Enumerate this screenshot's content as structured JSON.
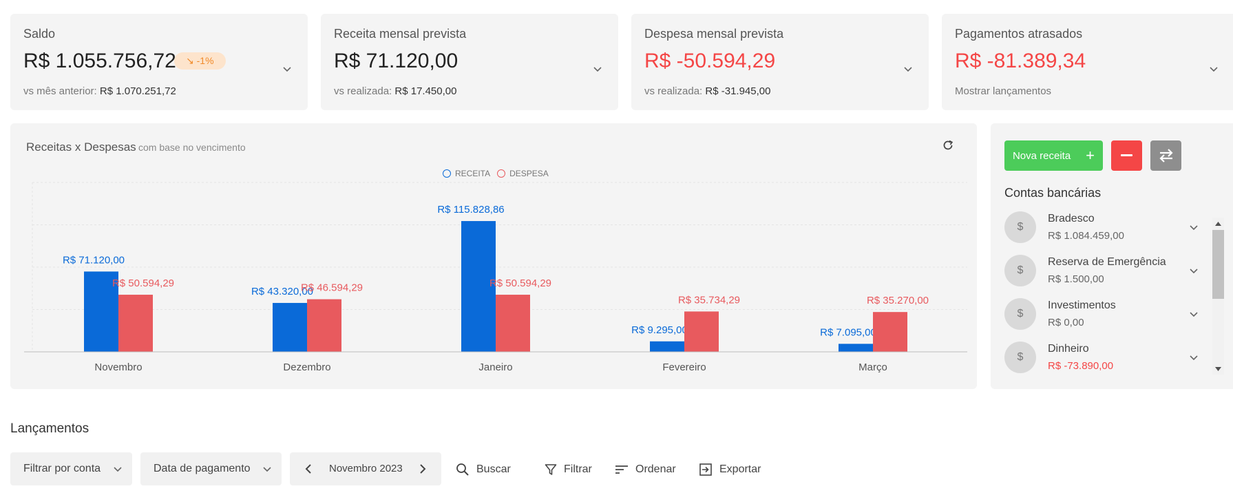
{
  "cards": [
    {
      "title": "Saldo",
      "value": "R$ 1.055.756,72",
      "badge": "↘ -1%",
      "sub_label": "vs mês anterior:",
      "sub_value": "R$ 1.070.251,72"
    },
    {
      "title": "Receita mensal prevista",
      "value": "R$ 71.120,00",
      "sub_label": "vs realizada:",
      "sub_value": "R$ 17.450,00"
    },
    {
      "title": "Despesa mensal prevista",
      "value": "R$ -50.594,29",
      "sub_label": "vs realizada:",
      "sub_value": "R$ -31.945,00"
    },
    {
      "title": "Pagamentos atrasados",
      "value": "R$ -81.389,34",
      "sub_label": "Mostrar lançamentos"
    }
  ],
  "chart_panel": {
    "title": "Receitas x Despesas",
    "subtitle": "com base no vencimento"
  },
  "chart_data": {
    "type": "bar",
    "title": "Receitas x Despesas",
    "categories": [
      "Novembro",
      "Dezembro",
      "Janeiro",
      "Fevereiro",
      "Março"
    ],
    "series": [
      {
        "name": "RECEITA",
        "color": "#0a6ad8",
        "values": [
          71120.0,
          43320.0,
          115828.86,
          9295.0,
          7095.0
        ],
        "labels": [
          "R$ 71.120,00",
          "R$ 43.320,00",
          "R$ 115.828,86",
          "R$ 9.295,00",
          "R$ 7.095,00"
        ]
      },
      {
        "name": "DESPESA",
        "color": "#e85a5e",
        "values": [
          50594.29,
          46594.29,
          50594.29,
          35734.29,
          35270.0
        ],
        "labels": [
          "R$ 50.594,29",
          "R$ 46.594,29",
          "R$ 50.594,29",
          "R$ 35.734,29",
          "R$ 35.270,00"
        ]
      }
    ],
    "ylim": [
      0,
      150000
    ],
    "legend": "top-center",
    "grid": true
  },
  "actions": {
    "new_income": "Nova receita",
    "new_income_icon": "plus-icon",
    "new_expense_icon": "minus-icon",
    "transfer_icon": "transfer-icon"
  },
  "accounts": {
    "title": "Contas bancárias",
    "items": [
      {
        "name": "Bradesco",
        "value": "R$ 1.084.459,00",
        "icon": "$"
      },
      {
        "name": "Reserva de Emergência",
        "value": "R$ 1.500,00",
        "icon": "$"
      },
      {
        "name": "Investimentos",
        "value": "R$ 0,00",
        "icon": "$"
      },
      {
        "name": "Dinheiro",
        "value": "R$ -73.890,00",
        "icon": "$"
      }
    ]
  },
  "transactions": {
    "title": "Lançamentos",
    "account_filter": "Filtrar por conta",
    "date_filter": "Data de pagamento",
    "period": "Novembro 2023",
    "search": "Buscar",
    "filter": "Filtrar",
    "sort": "Ordenar",
    "export": "Exportar"
  },
  "colors": {
    "negative": "#f44646",
    "card_bg": "#f4f4f4",
    "green": "#4ccc5a",
    "blue": "#0a6ad8",
    "red": "#e85a5e"
  }
}
